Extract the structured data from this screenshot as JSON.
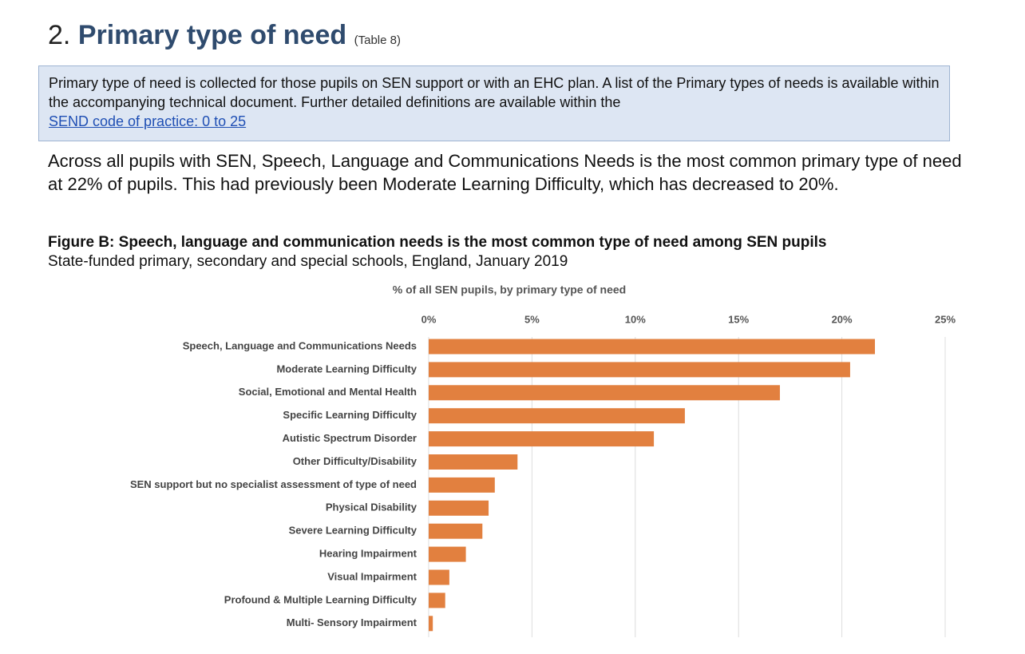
{
  "header": {
    "number": "2.",
    "title": "Primary type of need",
    "table_ref": "(Table 8)"
  },
  "info_box": {
    "text": "Primary type of need is collected for those pupils on SEN support or with an EHC plan. A list of the Primary types of needs is available within the accompanying technical document. Further detailed definitions are available within the",
    "link": "SEND code of practice: 0 to 25"
  },
  "paragraph": "Across all pupils with SEN, Speech, Language and Communications Needs is the most common primary type of need at 22% of pupils. This had previously been Moderate Learning Difficulty, which has decreased to 20%.",
  "figure": {
    "title": "Figure B: Speech, language and communication needs is the most common type of need among SEN pupils",
    "subtitle": "State-funded primary, secondary and special schools, England, January 2019"
  },
  "chart_data": {
    "type": "bar",
    "orientation": "horizontal",
    "title": "% of all SEN pupils, by primary type of need",
    "categories": [
      "Speech, Language and Communications Needs",
      "Moderate Learning Difficulty",
      "Social, Emotional and Mental Health",
      "Specific Learning Difficulty",
      "Autistic Spectrum Disorder",
      "Other Difficulty/Disability",
      "SEN support but no specialist assessment of type of need",
      "Physical Disability",
      "Severe Learning Difficulty",
      "Hearing Impairment",
      "Visual Impairment",
      "Profound & Multiple Learning Difficulty",
      "Multi- Sensory Impairment"
    ],
    "values": [
      21.6,
      20.4,
      17.0,
      12.4,
      10.9,
      4.3,
      3.2,
      2.9,
      2.6,
      1.8,
      1.0,
      0.8,
      0.2
    ],
    "color": "#e2803f",
    "xlim": [
      0,
      25
    ],
    "xticks": [
      {
        "value": 0,
        "label": "0%"
      },
      {
        "value": 5,
        "label": "5%"
      },
      {
        "value": 10,
        "label": "10%"
      },
      {
        "value": 15,
        "label": "15%"
      },
      {
        "value": 20,
        "label": "20%"
      },
      {
        "value": 25,
        "label": "25%"
      }
    ],
    "grid": true
  }
}
